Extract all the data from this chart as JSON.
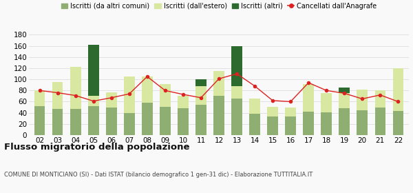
{
  "years": [
    "02",
    "03",
    "04",
    "05",
    "06",
    "07",
    "08",
    "09",
    "10",
    "11",
    "12",
    "13",
    "14",
    "15",
    "16",
    "17",
    "18",
    "19",
    "20",
    "21",
    "22"
  ],
  "iscritti_altri_comuni": [
    52,
    47,
    47,
    52,
    49,
    40,
    58,
    51,
    48,
    55,
    70,
    65,
    38,
    33,
    33,
    42,
    41,
    48,
    44,
    50,
    43
  ],
  "iscritti_estero": [
    28,
    48,
    75,
    18,
    28,
    65,
    47,
    40,
    22,
    33,
    45,
    23,
    27,
    18,
    16,
    50,
    34,
    27,
    38,
    30,
    77
  ],
  "iscritti_altri": [
    0,
    0,
    0,
    92,
    0,
    0,
    0,
    0,
    0,
    12,
    0,
    72,
    0,
    0,
    0,
    0,
    0,
    10,
    0,
    0,
    0
  ],
  "cancellati": [
    80,
    76,
    71,
    61,
    67,
    74,
    105,
    80,
    73,
    67,
    101,
    110,
    88,
    62,
    60,
    94,
    80,
    75,
    65,
    72,
    60
  ],
  "legend_labels": [
    "Iscritti (da altri comuni)",
    "Iscritti (dall'estero)",
    "Iscritti (altri)",
    "Cancellati dall'Anagrafe"
  ],
  "colors_bar": [
    "#8faf72",
    "#d8e8a0",
    "#2d6a2d",
    "#dd2222"
  ],
  "title": "Flusso migratorio della popolazione",
  "subtitle": "COMUNE DI MONTICIANO (SI) - Dati ISTAT (bilancio demografico 1 gen-31 dic) - Elaborazione TUTTITALIA.IT",
  "ylim": [
    0,
    180
  ],
  "yticks": [
    0,
    20,
    40,
    60,
    80,
    100,
    120,
    140,
    160,
    180
  ],
  "bg_color": "#f9f9f9",
  "grid_color": "#dddddd"
}
